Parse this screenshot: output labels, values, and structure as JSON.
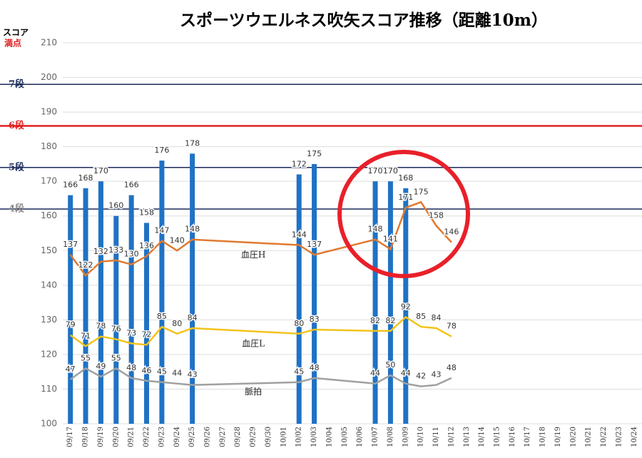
{
  "chart_data": {
    "type": "bar",
    "title": "スポーツウエルネス吹矢スコア推移（距離10m）",
    "ylabel": "スコア",
    "ylabel2": "満点",
    "categories": [
      "09/17",
      "09/18",
      "09/19",
      "09/20",
      "09/21",
      "09/22",
      "09/23",
      "09/24",
      "09/25",
      "09/26",
      "09/27",
      "09/28",
      "09/29",
      "09/30",
      "10/01",
      "10/02",
      "10/03",
      "10/04",
      "10/05",
      "10/06",
      "10/07",
      "10/08",
      "10/09",
      "10/10",
      "10/11",
      "10/12",
      "10/13",
      "10/14",
      "10/15",
      "10/16",
      "10/17",
      "10/18",
      "10/19",
      "10/20",
      "10/21",
      "10/22",
      "10/23",
      "10/24"
    ],
    "ylim": [
      100,
      210
    ],
    "yticks": [
      100,
      110,
      120,
      130,
      140,
      150,
      160,
      170,
      180,
      190,
      200,
      210
    ],
    "y2lim": [
      15,
      290
    ],
    "grid": true,
    "connect_gaps": true,
    "series": [
      {
        "name": "スコア",
        "type": "bar",
        "color": "#1f72c4",
        "values": [
          166,
          168,
          170,
          160,
          166,
          158,
          176,
          null,
          178,
          null,
          null,
          null,
          null,
          null,
          null,
          172,
          175,
          null,
          null,
          null,
          170,
          170,
          168,
          null,
          null,
          null,
          null,
          null,
          null,
          null,
          null,
          null,
          null,
          null,
          null,
          null,
          null,
          null
        ]
      },
      {
        "name": "血圧H",
        "type": "line",
        "axis": "y2",
        "color": "#e07a30",
        "values": [
          137,
          122,
          132,
          133,
          130,
          136,
          147,
          140,
          148,
          null,
          null,
          null,
          null,
          null,
          null,
          144,
          137,
          null,
          null,
          null,
          148,
          141,
          171,
          175,
          158,
          146,
          null,
          null,
          null,
          null,
          null,
          null,
          null,
          null,
          null,
          null,
          null,
          null
        ]
      },
      {
        "name": "血圧L",
        "type": "line",
        "axis": "y2",
        "color": "#f2c31b",
        "values": [
          79,
          71,
          78,
          76,
          73,
          72,
          85,
          80,
          84,
          null,
          null,
          null,
          null,
          null,
          null,
          80,
          83,
          null,
          null,
          null,
          82,
          82,
          92,
          85,
          84,
          78,
          null,
          null,
          null,
          null,
          null,
          null,
          null,
          null,
          null,
          null,
          null,
          null
        ]
      },
      {
        "name": "脈拍",
        "type": "line",
        "axis": "y2",
        "color": "#a0a0a0",
        "values": [
          47,
          55,
          49,
          55,
          48,
          46,
          45,
          44,
          43,
          null,
          null,
          null,
          null,
          null,
          null,
          45,
          48,
          null,
          null,
          null,
          44,
          50,
          44,
          42,
          43,
          48,
          null,
          null,
          null,
          null,
          null,
          null,
          null,
          null,
          null,
          null,
          null,
          null
        ]
      }
    ],
    "reference_lines": [
      {
        "label": "7段",
        "value": 198,
        "color": "#1a2a5a"
      },
      {
        "label": "6段",
        "value": 186,
        "color": "#e02020"
      },
      {
        "label": "5段",
        "value": 174,
        "color": "#1a2a5a"
      },
      {
        "label": "4段",
        "value": 162,
        "color": "#1a2a5a"
      }
    ]
  }
}
